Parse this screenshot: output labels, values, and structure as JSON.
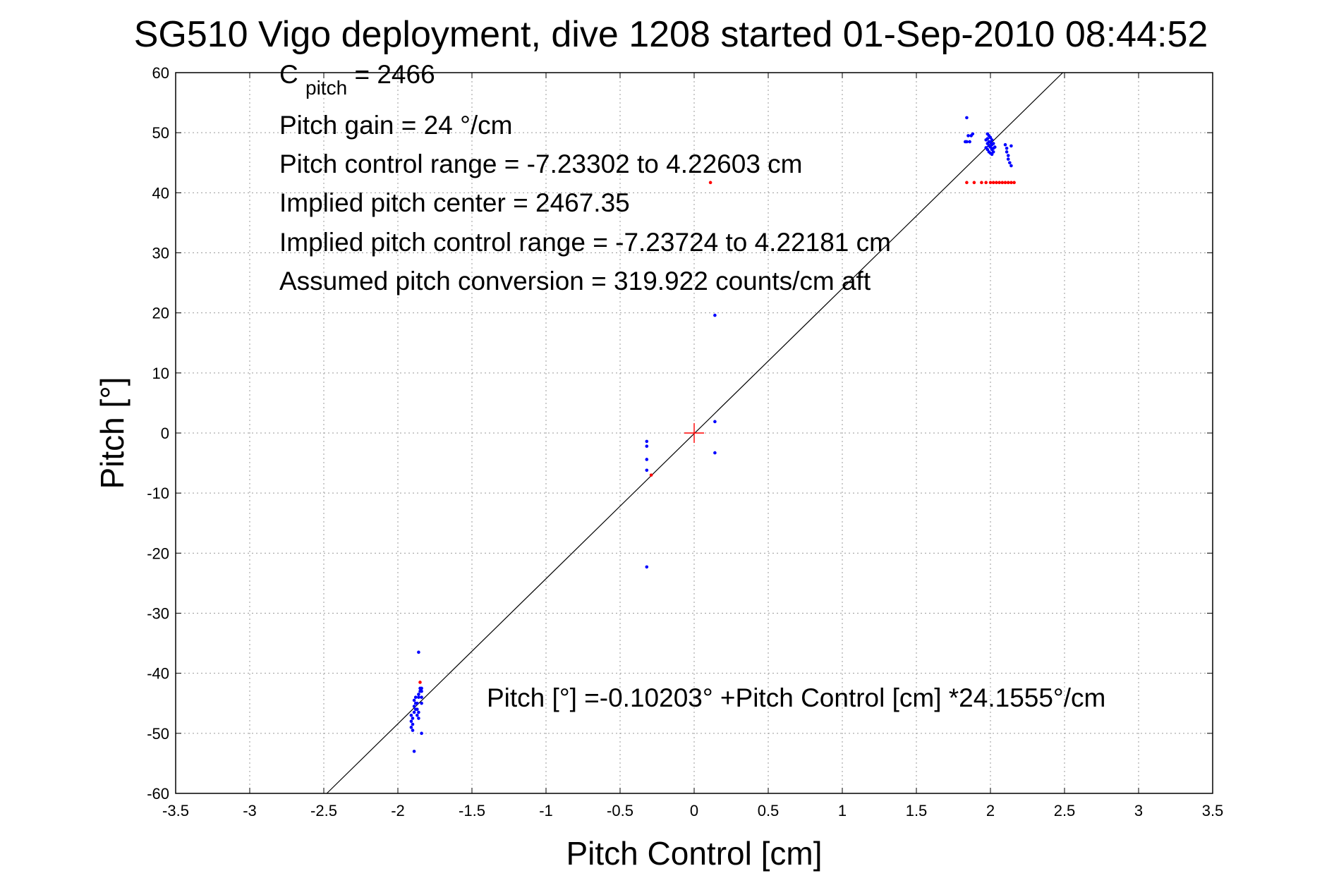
{
  "chart_data": {
    "type": "scatter",
    "title": "SG510 Vigo deployment, dive 1208 started 01-Sep-2010 08:44:52",
    "xlabel": "Pitch Control [cm]",
    "ylabel": "Pitch [°]",
    "xlim": [
      -3.5,
      3.5
    ],
    "ylim": [
      -60,
      60
    ],
    "grid": true,
    "xticks": [
      "-3.5",
      "-3",
      "-2.5",
      "-2",
      "-1.5",
      "-1",
      "-0.5",
      "0",
      "0.5",
      "1",
      "1.5",
      "2",
      "2.5",
      "3",
      "3.5"
    ],
    "yticks": [
      "-60",
      "-50",
      "-40",
      "-30",
      "-20",
      "-10",
      "0",
      "10",
      "20",
      "30",
      "40",
      "50",
      "60"
    ],
    "annotations": {
      "c_pitch_main": "C",
      "c_pitch_sub": "pitch",
      "c_pitch_value": " = 2466",
      "lines": [
        "Pitch gain = 24 °/cm",
        "Pitch control range = -7.23302 to 4.22603 cm",
        "Implied pitch center = 2467.35",
        "Implied pitch control range = -7.23724 to 4.22181 cm",
        "Assumed pitch conversion = 319.922 counts/cm aft"
      ],
      "fit_equation": "Pitch [°] =-0.10203° +Pitch Control [cm] *24.1555°/cm"
    },
    "fit_line": {
      "intercept": -0.10203,
      "slope": 24.1555
    },
    "center_marker": {
      "x": 0,
      "y": 0,
      "color": "#ff0000"
    },
    "series": [
      {
        "color": "#0000ff",
        "points": [
          [
            -1.89,
            -53
          ],
          [
            -1.9,
            -49.5
          ],
          [
            -1.91,
            -49
          ],
          [
            -1.9,
            -48.5
          ],
          [
            -1.91,
            -48
          ],
          [
            -1.9,
            -47.5
          ],
          [
            -1.91,
            -47
          ],
          [
            -1.89,
            -46.5
          ],
          [
            -1.88,
            -46
          ],
          [
            -1.89,
            -45.5
          ],
          [
            -1.88,
            -45
          ],
          [
            -1.89,
            -44.5
          ],
          [
            -1.88,
            -44
          ],
          [
            -1.87,
            -46
          ],
          [
            -1.87,
            -45
          ],
          [
            -1.87,
            -47
          ],
          [
            -1.86,
            -44
          ],
          [
            -1.86,
            -43.5
          ],
          [
            -1.85,
            -43
          ],
          [
            -1.85,
            -42.5
          ],
          [
            -1.84,
            -43
          ],
          [
            -1.84,
            -42.5
          ],
          [
            -1.84,
            -44
          ],
          [
            -1.84,
            -45
          ],
          [
            -1.86,
            -46.5
          ],
          [
            -1.86,
            -47.5
          ],
          [
            -1.84,
            -50
          ],
          [
            -1.86,
            -36.5
          ],
          [
            -0.32,
            -22.3
          ],
          [
            -0.32,
            -6.2
          ],
          [
            -0.32,
            -4.4
          ],
          [
            -0.32,
            -2.2
          ],
          [
            -0.32,
            -1.4
          ],
          [
            0.14,
            19.6
          ],
          [
            0.14,
            1.9
          ],
          [
            0.14,
            -3.3
          ],
          [
            1.84,
            52.5
          ],
          [
            1.83,
            48.5
          ],
          [
            1.84,
            48.5
          ],
          [
            1.85,
            49.5
          ],
          [
            1.86,
            48.5
          ],
          [
            1.87,
            49.5
          ],
          [
            1.88,
            49.8
          ],
          [
            1.97,
            48.8
          ],
          [
            1.97,
            47.5
          ],
          [
            1.98,
            49.8
          ],
          [
            1.98,
            49
          ],
          [
            1.98,
            48.2
          ],
          [
            1.98,
            47.2
          ],
          [
            1.99,
            49.5
          ],
          [
            1.99,
            48.5
          ],
          [
            1.99,
            47.8
          ],
          [
            1.99,
            46.8
          ],
          [
            2.0,
            49.2
          ],
          [
            2.0,
            48.4
          ],
          [
            2.0,
            47.6
          ],
          [
            2.0,
            46.6
          ],
          [
            2.01,
            48.8
          ],
          [
            2.01,
            48
          ],
          [
            2.01,
            47.2
          ],
          [
            2.01,
            46.4
          ],
          [
            2.02,
            48.2
          ],
          [
            2.02,
            47.4
          ],
          [
            2.02,
            46.8
          ],
          [
            2.03,
            47.6
          ],
          [
            2.1,
            48
          ],
          [
            2.11,
            47.4
          ],
          [
            2.11,
            46.8
          ],
          [
            2.12,
            46.2
          ],
          [
            2.12,
            45.6
          ],
          [
            2.13,
            45
          ],
          [
            2.14,
            47.8
          ],
          [
            2.14,
            44.5
          ]
        ]
      },
      {
        "color": "#ff0000",
        "points": [
          [
            -1.85,
            -41.5
          ],
          [
            -0.29,
            -7
          ],
          [
            0.11,
            41.7
          ],
          [
            1.84,
            41.7
          ],
          [
            1.89,
            41.7
          ],
          [
            1.94,
            41.7
          ],
          [
            1.97,
            41.7
          ],
          [
            2.0,
            41.7
          ],
          [
            2.02,
            41.7
          ],
          [
            2.04,
            41.7
          ],
          [
            2.06,
            41.7
          ],
          [
            2.08,
            41.7
          ],
          [
            2.1,
            41.7
          ],
          [
            2.12,
            41.7
          ],
          [
            2.14,
            41.7
          ],
          [
            2.16,
            41.7
          ]
        ]
      }
    ]
  }
}
